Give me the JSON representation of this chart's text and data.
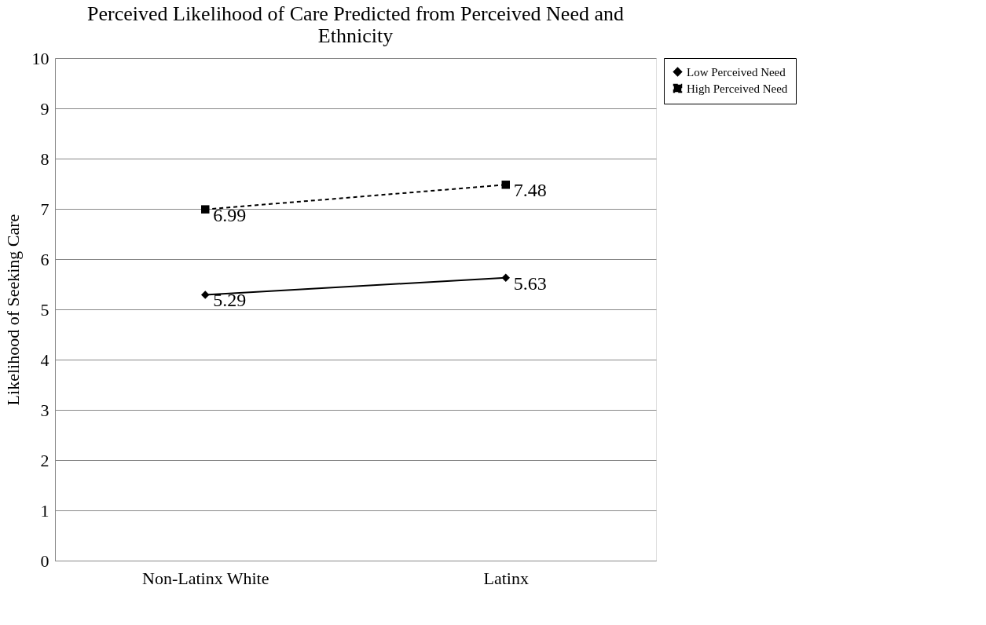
{
  "chart_data": {
    "type": "line",
    "title": "Perceived Likelihood of Care Predicted from Perceived Need and Ethnicity",
    "ylabel": "Likelihood of Seeking Care",
    "categories": [
      "Non-Latinx White",
      "Latinx"
    ],
    "series": [
      {
        "name": "Low Perceived Need",
        "color": "#000000",
        "values": [
          5.29,
          5.63
        ],
        "marker": "diamond",
        "line_style": "solid"
      },
      {
        "name": "High Perceived Need",
        "color": "#000000",
        "values": [
          6.99,
          7.48
        ],
        "marker": "square",
        "line_style": "dashed"
      }
    ],
    "ylim": [
      0,
      10
    ],
    "yticks": [
      0,
      1,
      2,
      3,
      4,
      5,
      6,
      7,
      8,
      9,
      10
    ],
    "grid": "y",
    "legend": "right",
    "data_labels": true
  }
}
